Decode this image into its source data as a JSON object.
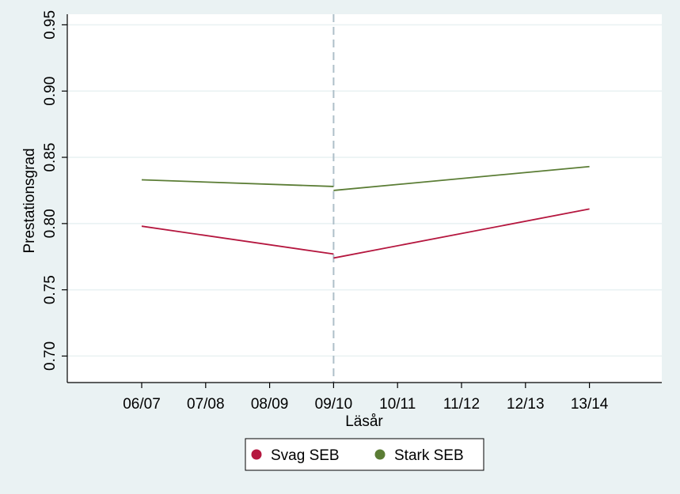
{
  "chart_data": {
    "type": "line",
    "title": "",
    "xlabel": "Läsår",
    "ylabel": "Prestationsgrad",
    "categories": [
      "06/07",
      "07/08",
      "08/09",
      "09/10",
      "10/11",
      "11/12",
      "12/13",
      "13/14"
    ],
    "yticks": [
      "0.70",
      "0.75",
      "0.80",
      "0.85",
      "0.90",
      "0.95"
    ],
    "ylim": [
      0.68,
      0.958
    ],
    "grid": true,
    "reference_line": {
      "category": "09/10",
      "style": "dashed"
    },
    "legend_position": "bottom",
    "series": [
      {
        "name": "Svag SEB",
        "color": "#B5173F",
        "segments": [
          [
            {
              "x": "06/07",
              "y": 0.798
            },
            {
              "x": "09/10",
              "y": 0.777
            }
          ],
          [
            {
              "x": "09/10",
              "y": 0.774
            },
            {
              "x": "13/14",
              "y": 0.811
            }
          ]
        ]
      },
      {
        "name": "Stark SEB",
        "color": "#5B7D35",
        "segments": [
          [
            {
              "x": "06/07",
              "y": 0.833
            },
            {
              "x": "09/10",
              "y": 0.828
            }
          ],
          [
            {
              "x": "09/10",
              "y": 0.825
            },
            {
              "x": "13/14",
              "y": 0.843
            }
          ]
        ]
      }
    ]
  },
  "colors": {
    "page_background": "#EAF2F3",
    "plot_background": "#FFFFFF",
    "gridline": "#EAF2F3",
    "axis": "#000000",
    "reference_line": "#AEBFC9"
  }
}
